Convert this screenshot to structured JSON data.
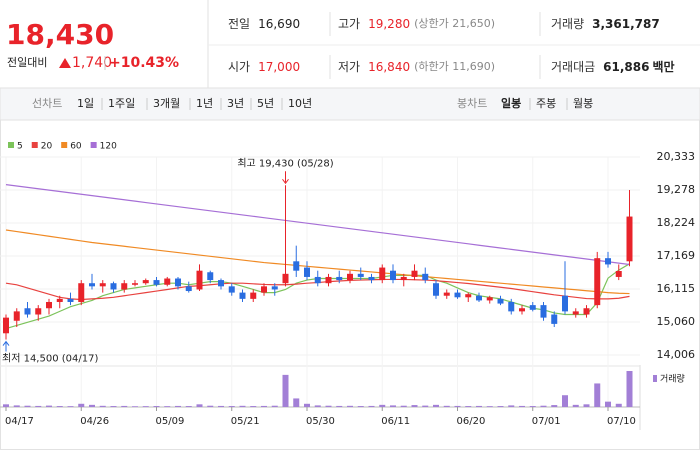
{
  "header": {
    "price": "18,430",
    "change_label": "전일대비",
    "change": "1,740",
    "change_pct": "+10.43%",
    "stats": [
      [
        {
          "label": "전일",
          "value": "16,690"
        },
        {
          "label": "고가",
          "value": "19,280",
          "note": "(상한가 21,650)"
        },
        {
          "label": "거래량",
          "value": "3,361,787"
        }
      ],
      [
        {
          "label": "시가",
          "value": "17,000"
        },
        {
          "label": "저가",
          "value": "16,840",
          "note": "(하한가 11,690)"
        },
        {
          "label": "거래대금",
          "value": "61,886",
          "unit": "백만"
        }
      ]
    ]
  },
  "tabs": {
    "line_label": "선차트",
    "line_periods": [
      "1일",
      "1주일",
      "3개월",
      "1년",
      "3년",
      "5년",
      "10년"
    ],
    "candle_label": "봉차트",
    "candle_periods": [
      "일봉",
      "주봉",
      "월봉"
    ],
    "selected": "일봉"
  },
  "chart_data": {
    "type": "candlestick",
    "categories": [
      "04/17",
      null,
      null,
      null,
      null,
      null,
      null,
      "04/26",
      null,
      null,
      null,
      null,
      null,
      null,
      "05/09",
      null,
      null,
      null,
      null,
      null,
      null,
      "05/21",
      null,
      null,
      null,
      null,
      null,
      null,
      "05/30",
      null,
      null,
      null,
      null,
      null,
      null,
      "06/11",
      null,
      null,
      null,
      null,
      null,
      null,
      "06/20",
      null,
      null,
      null,
      null,
      null,
      null,
      "07/01",
      null,
      null,
      null,
      null,
      null,
      null,
      "07/10",
      null,
      null
    ],
    "open": [
      14700,
      15100,
      15500,
      15300,
      15500,
      15700,
      15800,
      15700,
      16300,
      16200,
      16300,
      16100,
      16250,
      16300,
      16400,
      16250,
      16450,
      16200,
      16100,
      16650,
      16400,
      16200,
      16000,
      15800,
      16000,
      16200,
      16300,
      17000,
      16800,
      16500,
      16300,
      16500,
      16400,
      16600,
      16500,
      16400,
      16700,
      16400,
      16500,
      16600,
      16300,
      15900,
      16000,
      15850,
      15900,
      15750,
      15800,
      15700,
      15400,
      15600,
      15600,
      15300,
      15900,
      15300,
      15300,
      15600,
      17100,
      16500,
      17000
    ],
    "high": [
      15300,
      15500,
      15700,
      15600,
      15800,
      15900,
      16000,
      16400,
      16600,
      16400,
      16350,
      16400,
      16400,
      16450,
      16500,
      16500,
      16500,
      16350,
      16900,
      16700,
      16450,
      16300,
      16100,
      16100,
      16300,
      16300,
      19430,
      17500,
      17000,
      16700,
      16600,
      16700,
      16700,
      16800,
      16600,
      16900,
      16900,
      16600,
      16900,
      16800,
      16400,
      16100,
      16100,
      16000,
      16000,
      15900,
      15900,
      15800,
      15600,
      15700,
      15700,
      15400,
      17000,
      15500,
      15600,
      17300,
      17300,
      16900,
      19280
    ],
    "low": [
      14500,
      14900,
      15200,
      15100,
      15300,
      15500,
      15600,
      15600,
      16100,
      16000,
      16000,
      16000,
      16200,
      16250,
      16200,
      16200,
      16100,
      16000,
      16050,
      16300,
      16100,
      15900,
      15700,
      15700,
      15900,
      15900,
      16200,
      16500,
      16400,
      16200,
      16200,
      16300,
      16300,
      16400,
      16300,
      16300,
      16300,
      16200,
      16400,
      16300,
      15800,
      15800,
      15800,
      15700,
      15700,
      15650,
      15600,
      15300,
      15300,
      15400,
      15100,
      14900,
      15300,
      15200,
      15200,
      15500,
      16800,
      16400,
      16840
    ],
    "close": [
      15200,
      15400,
      15300,
      15500,
      15700,
      15800,
      15700,
      16300,
      16200,
      16300,
      16100,
      16300,
      16300,
      16400,
      16250,
      16450,
      16200,
      16050,
      16700,
      16400,
      16200,
      16000,
      15800,
      16000,
      16200,
      16100,
      16600,
      16700,
      16500,
      16300,
      16500,
      16400,
      16600,
      16500,
      16400,
      16800,
      16400,
      16500,
      16700,
      16400,
      15900,
      16000,
      15850,
      15950,
      15750,
      15850,
      15650,
      15400,
      15500,
      15450,
      15200,
      15000,
      15400,
      15400,
      15500,
      17100,
      16900,
      16690,
      18430
    ],
    "up_color": "#e8232a",
    "down_color": "#2a6de0",
    "moving_averages": [
      {
        "name": "5",
        "color": "#7cc35a",
        "values": [
          14850,
          14950,
          15050,
          15150,
          15250,
          15400,
          15550,
          15650,
          15750,
          15900,
          16000,
          16100,
          16150,
          16200,
          16250,
          16300,
          16300,
          16250,
          16300,
          16350,
          16350,
          16300,
          16200,
          16100,
          16000,
          16000,
          16100,
          16300,
          16400,
          16450,
          16450,
          16450,
          16450,
          16450,
          16450,
          16500,
          16550,
          16550,
          16550,
          16550,
          16400,
          16300,
          16150,
          16000,
          15900,
          15850,
          15800,
          15700,
          15600,
          15500,
          15450,
          15350,
          15300,
          15300,
          15300,
          15680,
          16460,
          16720,
          16920
        ]
      },
      {
        "name": "20",
        "color": "#e8423f",
        "values": [
          16300,
          16250,
          16150,
          16050,
          15950,
          15850,
          15800,
          15780,
          15800,
          15820,
          15850,
          15900,
          15950,
          16000,
          16050,
          16100,
          16150,
          16200,
          16220,
          16250,
          16280,
          16300,
          16300,
          16280,
          16260,
          16250,
          16250,
          16270,
          16300,
          16320,
          16350,
          16370,
          16390,
          16400,
          16410,
          16420,
          16420,
          16420,
          16410,
          16400,
          16380,
          16350,
          16320,
          16290,
          16250,
          16210,
          16170,
          16130,
          16080,
          16030,
          15980,
          15930,
          15890,
          15850,
          15810,
          15800,
          15800,
          15820,
          15880
        ]
      },
      {
        "name": "60",
        "color": "#f08a24",
        "values": [
          18000,
          17950,
          17900,
          17850,
          17800,
          17750,
          17700,
          17650,
          17600,
          17560,
          17520,
          17480,
          17440,
          17400,
          17360,
          17320,
          17280,
          17240,
          17200,
          17160,
          17120,
          17080,
          17040,
          17000,
          16960,
          16930,
          16900,
          16870,
          16840,
          16810,
          16780,
          16750,
          16720,
          16690,
          16660,
          16630,
          16600,
          16570,
          16540,
          16510,
          16480,
          16450,
          16420,
          16390,
          16360,
          16330,
          16300,
          16270,
          16240,
          16210,
          16180,
          16150,
          16120,
          16090,
          16060,
          16030,
          16000,
          15980,
          15970
        ]
      },
      {
        "name": "120",
        "color": "#a66fd6",
        "values": [
          19450,
          19406,
          19362,
          19318,
          19274,
          19230,
          19186,
          19142,
          19098,
          19054,
          19010,
          18966,
          18922,
          18878,
          18834,
          18790,
          18746,
          18702,
          18658,
          18614,
          18570,
          18526,
          18482,
          18438,
          18394,
          18350,
          18306,
          18262,
          18218,
          18174,
          18130,
          18086,
          18042,
          17998,
          17954,
          17910,
          17866,
          17822,
          17778,
          17734,
          17690,
          17646,
          17602,
          17558,
          17514,
          17470,
          17426,
          17382,
          17338,
          17294,
          17250,
          17206,
          17162,
          17118,
          17074,
          17030,
          16986,
          16942,
          16898
        ]
      }
    ],
    "volume": {
      "name": "거래량",
      "color": "#a27fd6",
      "values": [
        250000,
        150000,
        120000,
        100000,
        130000,
        90000,
        80000,
        300000,
        200000,
        110000,
        90000,
        100000,
        70000,
        80000,
        90000,
        80000,
        100000,
        90000,
        250000,
        120000,
        100000,
        90000,
        110000,
        90000,
        100000,
        120000,
        3000000,
        800000,
        300000,
        150000,
        120000,
        100000,
        110000,
        90000,
        100000,
        200000,
        150000,
        120000,
        180000,
        130000,
        200000,
        110000,
        100000,
        90000,
        100000,
        80000,
        90000,
        150000,
        100000,
        90000,
        120000,
        180000,
        1100000,
        200000,
        250000,
        2200000,
        500000,
        300000,
        3361787
      ]
    },
    "annotations": [
      {
        "text": "최고 19,430 (05/28)",
        "value": 19430,
        "color": "#e8232a"
      },
      {
        "text": "최저 14,500 (04/17)",
        "value": 14500,
        "color": "#2a6de0"
      }
    ],
    "ylim": [
      14006,
      20333
    ],
    "yticks": [
      {
        "value": 14006,
        "label": "14,006"
      },
      {
        "value": 15060,
        "label": "15,060"
      },
      {
        "value": 16115,
        "label": "16,115"
      },
      {
        "value": 17169,
        "label": "17,169"
      },
      {
        "value": 18224,
        "label": "18,224"
      },
      {
        "value": 19278,
        "label": "19,278"
      },
      {
        "value": 20333,
        "label": "20,333"
      }
    ],
    "grid": true
  }
}
